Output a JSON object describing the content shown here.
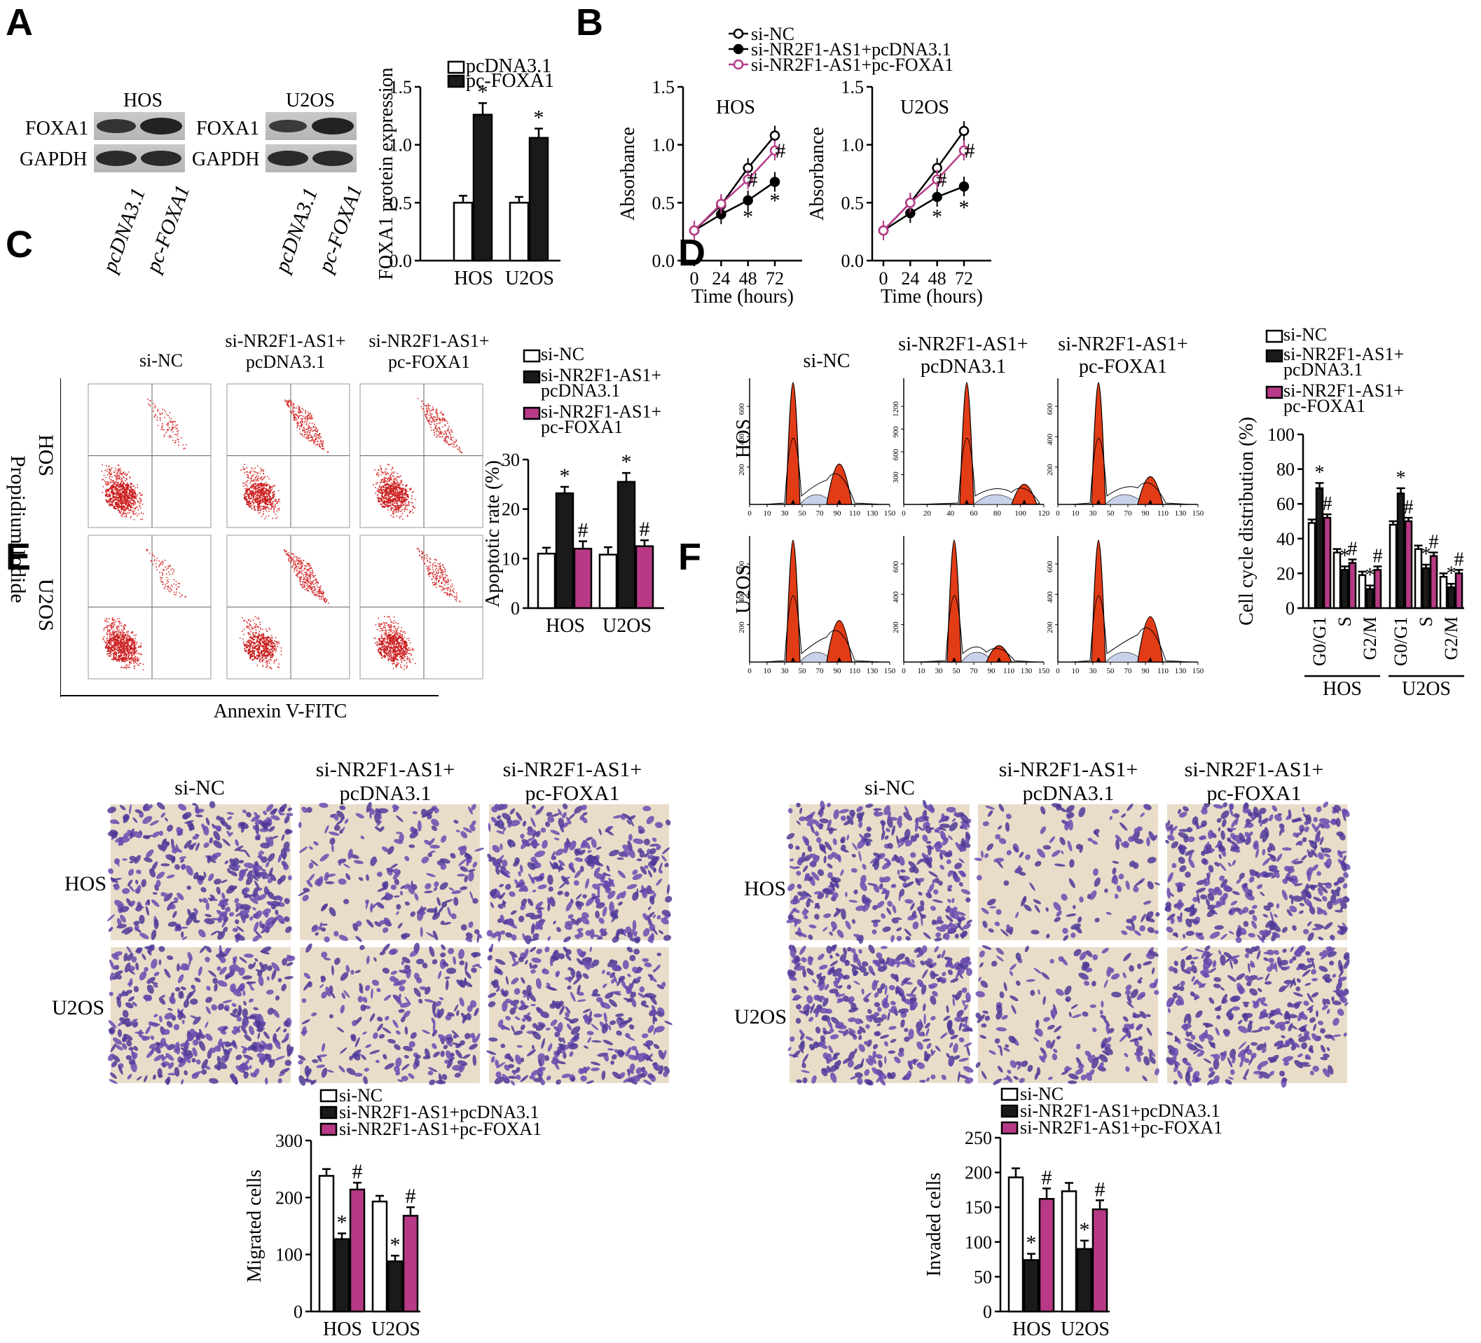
{
  "panels": {
    "A": "A",
    "B": "B",
    "C": "C",
    "D": "D",
    "E": "E",
    "F": "F"
  },
  "colors": {
    "black": "#1a1a1a",
    "white": "#ffffff",
    "magenta": "#b83a86",
    "flow_dot": "#d62f2f",
    "peak_red": "#e23c17",
    "crystal_violet": "#6a4bb0",
    "background_tan": "#e9ddc9"
  },
  "panel_a": {
    "cell_labels": [
      "HOS",
      "U2OS"
    ],
    "blot_rows": [
      "FOXA1",
      "GAPDH"
    ],
    "lane_labels": [
      "pcDNA3.1",
      "pc-FOXA1"
    ],
    "legend": [
      "pcDNA3.1",
      "pc-FOXA1"
    ],
    "ylabel": "FOXA1 protein expression",
    "star": "*"
  },
  "panel_b": {
    "legend": [
      "si-NC",
      "si-NR2F1-AS1+pcDNA3.1",
      "si-NR2F1-AS1+pc-FOXA1"
    ],
    "titles": [
      "HOS",
      "U2OS"
    ],
    "ylabel": "Absorbance",
    "xlabel": "Time (hours)"
  },
  "panel_c": {
    "col_headers": [
      [
        "si-NC",
        ""
      ],
      [
        "si-NR2F1-AS1+",
        "pcDNA3.1"
      ],
      [
        "si-NR2F1-AS1+",
        "pc-FOXA1"
      ]
    ],
    "row_labels": [
      "HOS",
      "U2OS"
    ],
    "yaxis": "Propidium Iodide",
    "xaxis": "Annexin V-FITC",
    "legend": [
      [
        "si-NC",
        ""
      ],
      [
        "si-NR2F1-AS1+",
        "pcDNA3.1"
      ],
      [
        "si-NR2F1-AS1+",
        "pc-FOXA1"
      ]
    ],
    "ylabel": "Apoptotic rate (%)"
  },
  "panel_d": {
    "col_headers": [
      [
        "si-NC",
        ""
      ],
      [
        "si-NR2F1-AS1+",
        "pcDNA3.1"
      ],
      [
        "si-NR2F1-AS1+",
        "pc-FOXA1"
      ]
    ],
    "row_labels": [
      "HOS",
      "U2OS"
    ],
    "legend": [
      [
        "si-NC",
        ""
      ],
      [
        "si-NR2F1-AS1+",
        "pcDNA3.1"
      ],
      [
        "si-NR2F1-AS1+",
        "pc-FOXA1"
      ]
    ],
    "ylabel": "Cell cycle distribution (%)",
    "phases": [
      "G0/G1",
      "S",
      "G2/M"
    ],
    "groups": [
      "HOS",
      "U2OS"
    ],
    "hist_xticks": [
      "0",
      "10",
      "30",
      "50",
      "70",
      "90",
      "110",
      "130",
      "150"
    ],
    "hist_xticks_mid": [
      "0",
      "20",
      "40",
      "60",
      "80",
      "100",
      "120"
    ],
    "hist_yticks_a": [
      "600",
      "400",
      "200"
    ],
    "hist_yticks_b": [
      "1200",
      "900",
      "600",
      "300"
    ]
  },
  "panel_e": {
    "col_headers": [
      [
        "si-NC",
        ""
      ],
      [
        "si-NR2F1-AS1+",
        "pcDNA3.1"
      ],
      [
        "si-NR2F1-AS1+",
        "pc-FOXA1"
      ]
    ],
    "row_labels": [
      "HOS",
      "U2OS"
    ],
    "legend": [
      "si-NC",
      "si-NR2F1-AS1+pcDNA3.1",
      "si-NR2F1-AS1+pc-FOXA1"
    ],
    "ylabel": "Migrated cells"
  },
  "panel_f": {
    "col_headers": [
      [
        "si-NC",
        ""
      ],
      [
        "si-NR2F1-AS1+",
        "pcDNA3.1"
      ],
      [
        "si-NR2F1-AS1+",
        "pc-FOXA1"
      ]
    ],
    "row_labels": [
      "HOS",
      "U2OS"
    ],
    "legend": [
      "si-NC",
      "si-NR2F1-AS1+pcDNA3.1",
      "si-NR2F1-AS1+pc-FOXA1"
    ],
    "ylabel": "Invaded cells"
  },
  "chart_data": [
    {
      "id": "A",
      "type": "bar",
      "categories": [
        "HOS",
        "U2OS"
      ],
      "series": [
        {
          "name": "pcDNA3.1",
          "values": [
            0.5,
            0.5
          ],
          "err": [
            0.06,
            0.05
          ]
        },
        {
          "name": "pc-FOXA1",
          "values": [
            1.26,
            1.06
          ],
          "err": [
            0.1,
            0.08
          ]
        }
      ],
      "sig": [
        [
          null,
          "*"
        ],
        [
          null,
          "*"
        ]
      ],
      "ylim": [
        0,
        1.5
      ],
      "yticks": [
        "0.0",
        "0.5",
        "1.0",
        "1.5"
      ],
      "ytick_values": [
        0,
        0.5,
        1.0,
        1.5
      ],
      "ylabel": "FOXA1 protein expression"
    },
    {
      "id": "B-HOS",
      "type": "line",
      "title": "HOS",
      "x": [
        0,
        24,
        48,
        72
      ],
      "xticks": [
        "0",
        "24",
        "48",
        "72"
      ],
      "series": [
        {
          "name": "si-NC",
          "values": [
            0.26,
            0.48,
            0.8,
            1.08
          ]
        },
        {
          "name": "si-NR2F1-AS1+pcDNA3.1",
          "values": [
            0.26,
            0.4,
            0.52,
            0.68
          ]
        },
        {
          "name": "si-NR2F1-AS1+pc-FOXA1",
          "values": [
            0.26,
            0.49,
            0.7,
            0.95
          ]
        }
      ],
      "sig_labels": [
        {
          "x": 48,
          "y": 0.38,
          "t": "*"
        },
        {
          "x": 72,
          "y": 0.52,
          "t": "*"
        },
        {
          "x": 52,
          "y": 0.7,
          "t": "#"
        },
        {
          "x": 77,
          "y": 0.95,
          "t": "#"
        }
      ],
      "ylim": [
        0,
        1.5
      ],
      "yticks": [
        "0.0",
        "0.5",
        "1.0",
        "1.5"
      ],
      "ytick_values": [
        0,
        0.5,
        1.0,
        1.5
      ],
      "ylabel": "Absorbance",
      "xlabel": "Time (hours)"
    },
    {
      "id": "B-U2OS",
      "type": "line",
      "title": "U2OS",
      "x": [
        0,
        24,
        48,
        72
      ],
      "xticks": [
        "0",
        "24",
        "48",
        "72"
      ],
      "series": [
        {
          "name": "si-NC",
          "values": [
            0.26,
            0.5,
            0.8,
            1.12
          ]
        },
        {
          "name": "si-NR2F1-AS1+pcDNA3.1",
          "values": [
            0.26,
            0.41,
            0.55,
            0.64
          ]
        },
        {
          "name": "si-NR2F1-AS1+pc-FOXA1",
          "values": [
            0.26,
            0.5,
            0.7,
            0.95
          ]
        }
      ],
      "sig_labels": [
        {
          "x": 48,
          "y": 0.38,
          "t": "*"
        },
        {
          "x": 72,
          "y": 0.46,
          "t": "*"
        },
        {
          "x": 52,
          "y": 0.7,
          "t": "#"
        },
        {
          "x": 77,
          "y": 0.95,
          "t": "#"
        }
      ],
      "ylim": [
        0,
        1.5
      ],
      "yticks": [
        "0.0",
        "0.5",
        "1.0",
        "1.5"
      ],
      "ytick_values": [
        0,
        0.5,
        1.0,
        1.5
      ],
      "ylabel": "Absorbance",
      "xlabel": "Time (hours)"
    },
    {
      "id": "C",
      "type": "bar",
      "categories": [
        "HOS",
        "U2OS"
      ],
      "series": [
        {
          "name": "si-NC",
          "values": [
            11,
            10.8
          ],
          "err": [
            1.2,
            1.5
          ]
        },
        {
          "name": "si-NR2F1-AS1+pcDNA3.1",
          "values": [
            23.2,
            25.5
          ],
          "err": [
            1.3,
            1.8
          ]
        },
        {
          "name": "si-NR2F1-AS1+pc-FOXA1",
          "values": [
            12,
            12.5
          ],
          "err": [
            1.5,
            1.2
          ]
        }
      ],
      "sig": [
        [
          null,
          "*",
          "#"
        ],
        [
          null,
          "*",
          "#"
        ]
      ],
      "ylim": [
        0,
        30
      ],
      "yticks": [
        "0",
        "10",
        "20",
        "30"
      ],
      "ytick_values": [
        0,
        10,
        20,
        30
      ],
      "ylabel": "Apoptotic rate (%)"
    },
    {
      "id": "D",
      "type": "bar",
      "categories": [
        "G0/G1",
        "S",
        "G2/M",
        "G0/G1",
        "S",
        "G2/M"
      ],
      "series": [
        {
          "name": "si-NC",
          "values": [
            49,
            32,
            19,
            48,
            34,
            18
          ],
          "err": [
            2,
            2,
            2,
            2,
            2,
            2
          ]
        },
        {
          "name": "si-NR2F1-AS1+pcDNA3.1",
          "values": [
            69,
            22,
            11,
            66,
            23,
            12
          ],
          "err": [
            3,
            2,
            2,
            3,
            2,
            2
          ]
        },
        {
          "name": "si-NR2F1-AS1+pc-FOXA1",
          "values": [
            52,
            26,
            22,
            50,
            30,
            20
          ],
          "err": [
            2,
            2,
            2,
            2,
            2,
            2
          ]
        }
      ],
      "sig": [
        [
          null,
          "*",
          "#"
        ],
        [
          null,
          "*",
          "#"
        ],
        [
          null,
          "*",
          "#"
        ],
        [
          null,
          "*",
          "#"
        ],
        [
          null,
          "*",
          "#"
        ],
        [
          null,
          "*",
          "#"
        ]
      ],
      "ylim": [
        0,
        100
      ],
      "yticks": [
        "0",
        "20",
        "40",
        "60",
        "80",
        "100"
      ],
      "ytick_values": [
        0,
        20,
        40,
        60,
        80,
        100
      ],
      "ylabel": "Cell cycle distribution (%)"
    },
    {
      "id": "E",
      "type": "bar",
      "categories": [
        "HOS",
        "U2OS"
      ],
      "series": [
        {
          "name": "si-NC",
          "values": [
            238,
            193
          ],
          "err": [
            12,
            10
          ]
        },
        {
          "name": "si-NR2F1-AS1+pcDNA3.1",
          "values": [
            127,
            88
          ],
          "err": [
            10,
            10
          ]
        },
        {
          "name": "si-NR2F1-AS1+pc-FOXA1",
          "values": [
            214,
            168
          ],
          "err": [
            12,
            15
          ]
        }
      ],
      "sig": [
        [
          null,
          "*",
          "#"
        ],
        [
          null,
          "*",
          "#"
        ]
      ],
      "ylim": [
        0,
        300
      ],
      "yticks": [
        "0",
        "100",
        "200",
        "300"
      ],
      "ytick_values": [
        0,
        100,
        200,
        300
      ],
      "ylabel": "Migrated cells"
    },
    {
      "id": "F",
      "type": "bar",
      "categories": [
        "HOS",
        "U2OS"
      ],
      "series": [
        {
          "name": "si-NC",
          "values": [
            193,
            173
          ],
          "err": [
            13,
            12
          ]
        },
        {
          "name": "si-NR2F1-AS1+pcDNA3.1",
          "values": [
            74,
            90
          ],
          "err": [
            9,
            12
          ]
        },
        {
          "name": "si-NR2F1-AS1+pc-FOXA1",
          "values": [
            162,
            147
          ],
          "err": [
            15,
            13
          ]
        }
      ],
      "sig": [
        [
          null,
          "*",
          "#"
        ],
        [
          null,
          "*",
          "#"
        ]
      ],
      "ylim": [
        0,
        250
      ],
      "yticks": [
        "0",
        "50",
        "100",
        "150",
        "200",
        "250"
      ],
      "ytick_values": [
        0,
        50,
        100,
        150,
        200,
        250
      ],
      "ylabel": "Invaded cells"
    }
  ]
}
